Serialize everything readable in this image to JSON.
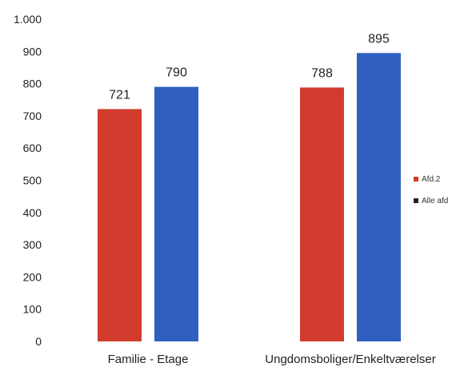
{
  "chart_data": {
    "type": "bar",
    "categories": [
      "Familie - Etage",
      "Ungdomsboliger/Enkeltværelser"
    ],
    "series": [
      {
        "name": "Afd.2",
        "values": [
          721,
          788
        ],
        "color": "#d23c2f",
        "labels": [
          "721",
          "788"
        ]
      },
      {
        "name": "Alle afd",
        "values": [
          790,
          895
        ],
        "color": "#2f5fc0",
        "labels": [
          "790",
          "895"
        ]
      }
    ],
    "ylim": [
      0,
      1000
    ],
    "yticks": [
      0,
      100,
      200,
      300,
      400,
      500,
      600,
      700,
      800,
      900,
      1000
    ],
    "ytick_labels": [
      "0",
      "100",
      "200",
      "300",
      "400",
      "500",
      "600",
      "700",
      "800",
      "900",
      "1.000"
    ],
    "legend_position": "right",
    "legend_marker_colors": [
      "#d23c2f",
      "#222222"
    ],
    "grid": false,
    "title": "",
    "xlabel": "",
    "ylabel": ""
  }
}
